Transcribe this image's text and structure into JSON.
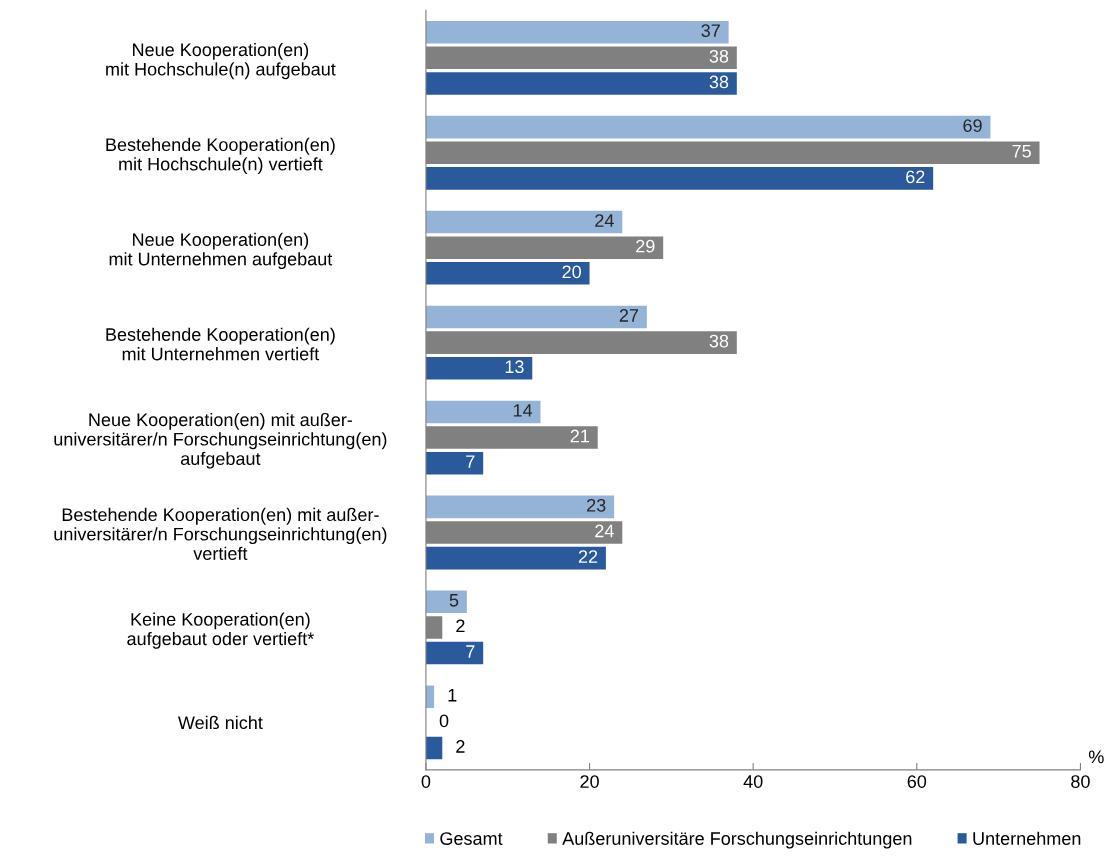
{
  "chart_data": {
    "type": "bar",
    "orientation": "horizontal",
    "categories": [
      "Neue Kooperation(en)\nmit Hochschule(n) aufgebaut",
      "Bestehende Kooperation(en)\nmit Hochschule(n) vertieft",
      "Neue Kooperation(en)\nmit Unternehmen aufgebaut",
      "Bestehende Kooperation(en)\nmit Unternehmen vertieft",
      "Neue Kooperation(en) mit außer-\nuniversitärer/n Forschungseinrichtung(en)\naufgebaut",
      "Bestehende Kooperation(en) mit außer-\nuniversitärer/n Forschungseinrichtung(en)\nvertieft",
      "Keine Kooperation(en)\naufgebaut oder vertieft*",
      "Weiß nicht"
    ],
    "series": [
      {
        "name": "Gesamt",
        "color": "#95b3d7",
        "values": [
          37,
          69,
          24,
          27,
          14,
          23,
          5,
          1
        ]
      },
      {
        "name": "Außeruniversitäre Forschungseinrichtungen",
        "color": "#808080",
        "values": [
          38,
          75,
          29,
          38,
          21,
          24,
          2,
          0
        ]
      },
      {
        "name": "Unternehmen",
        "color": "#2a5a9b",
        "values": [
          38,
          62,
          20,
          13,
          7,
          22,
          7,
          2
        ]
      }
    ],
    "xlabel": "%",
    "xlim": [
      0,
      80
    ],
    "xticks": [
      0,
      20,
      40,
      60,
      80
    ],
    "data_labels": true,
    "legend": "bottom",
    "grid": false
  }
}
